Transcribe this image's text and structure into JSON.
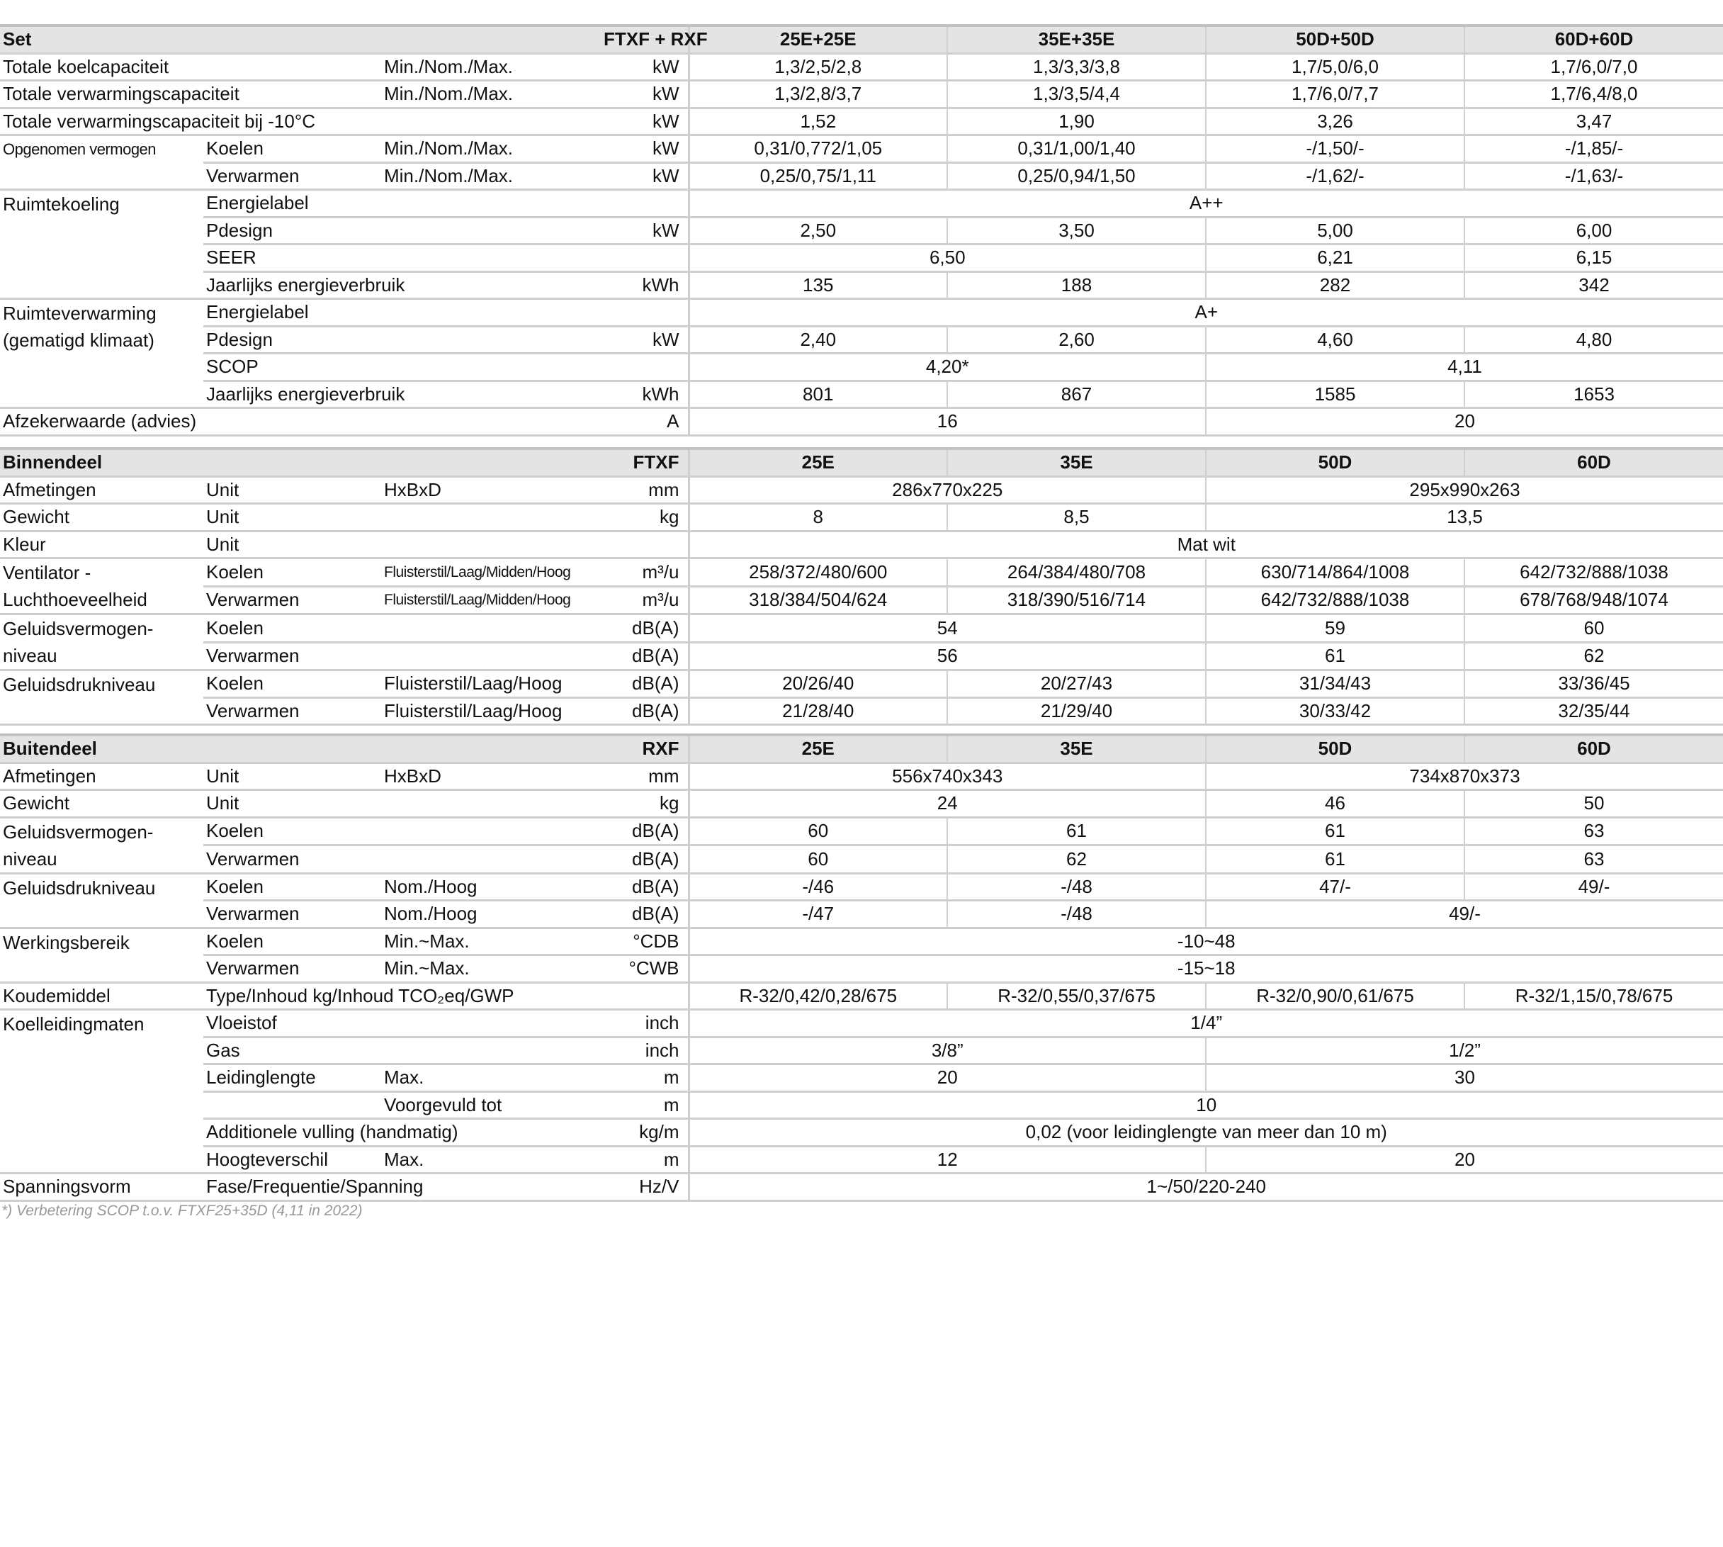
{
  "sections": [
    {
      "header": {
        "title": "Set",
        "model": "FTXF + RXF",
        "cols": [
          "25E+25E",
          "35E+35E",
          "50D+50D",
          "60D+60D"
        ]
      },
      "rows": [
        {
          "g": "Totale koelcapaciteit",
          "gs": 1,
          "sub": "",
          "spec": "Min./Nom./Max.",
          "unit": "kW",
          "cells": [
            [
              "1,3/2,5/2,8",
              1
            ],
            [
              "1,3/3,3/3,8",
              1
            ],
            [
              "1,7/5,0/6,0",
              1
            ],
            [
              "1,7/6,0/7,0",
              1
            ]
          ]
        },
        {
          "g": "Totale verwarmingscapaciteit",
          "gs": 1,
          "sub": "",
          "spec": "Min./Nom./Max.",
          "unit": "kW",
          "cells": [
            [
              "1,3/2,8/3,7",
              1
            ],
            [
              "1,3/3,5/4,4",
              1
            ],
            [
              "1,7/6,0/7,7",
              1
            ],
            [
              "1,7/6,4/8,0",
              1
            ]
          ]
        },
        {
          "g": "Totale verwarmingscapaciteit bij -10°C",
          "gs": 1,
          "sub": "",
          "spec": "",
          "unit": "kW",
          "cells": [
            [
              "1,52",
              1
            ],
            [
              "1,90",
              1
            ],
            [
              "3,26",
              1
            ],
            [
              "3,47",
              1
            ]
          ]
        },
        {
          "g": "Opgenomen vermogen",
          "gs": 2,
          "gsmall": true,
          "sub": "Koelen",
          "spec": "Min./Nom./Max.",
          "unit": "kW",
          "cells": [
            [
              "0,31/0,772/1,05",
              1
            ],
            [
              "0,31/1,00/1,40",
              1
            ],
            [
              "-/1,50/-",
              1
            ],
            [
              "-/1,85/-",
              1
            ]
          ]
        },
        {
          "sub": "Verwarmen",
          "spec": "Min./Nom./Max.",
          "unit": "kW",
          "cells": [
            [
              "0,25/0,75/1,11",
              1
            ],
            [
              "0,25/0,94/1,50",
              1
            ],
            [
              "-/1,62/-",
              1
            ],
            [
              "-/1,63/-",
              1
            ]
          ]
        },
        {
          "g": "Ruimtekoeling",
          "gs": 4,
          "sub": "Energielabel",
          "spec": "",
          "unit": "",
          "cells": [
            [
              "A++",
              4
            ]
          ]
        },
        {
          "sub": "Pdesign",
          "spec": "",
          "unit": "kW",
          "cells": [
            [
              "2,50",
              1
            ],
            [
              "3,50",
              1
            ],
            [
              "5,00",
              1
            ],
            [
              "6,00",
              1
            ]
          ]
        },
        {
          "sub": "SEER",
          "spec": "",
          "unit": "",
          "cells": [
            [
              "6,50",
              2
            ],
            [
              "6,21",
              1
            ],
            [
              "6,15",
              1
            ]
          ]
        },
        {
          "sub": "Jaarlijks energieverbruik",
          "spec": "",
          "unit": "kWh",
          "cells": [
            [
              "135",
              1
            ],
            [
              "188",
              1
            ],
            [
              "282",
              1
            ],
            [
              "342",
              1
            ]
          ]
        },
        {
          "g": "Ruimteverwarming (gematigd klimaat)",
          "gs": 4,
          "sub": "Energielabel",
          "spec": "",
          "unit": "",
          "cells": [
            [
              "A+",
              4
            ]
          ]
        },
        {
          "sub": "Pdesign",
          "spec": "",
          "unit": "kW",
          "cells": [
            [
              "2,40",
              1
            ],
            [
              "2,60",
              1
            ],
            [
              "4,60",
              1
            ],
            [
              "4,80",
              1
            ]
          ]
        },
        {
          "sub": "SCOP",
          "spec": "",
          "unit": "",
          "cells": [
            [
              "4,20*",
              2
            ],
            [
              "4,11",
              2
            ]
          ]
        },
        {
          "sub": "Jaarlijks energieverbruik",
          "spec": "",
          "unit": "kWh",
          "cells": [
            [
              "801",
              1
            ],
            [
              "867",
              1
            ],
            [
              "1585",
              1
            ],
            [
              "1653",
              1
            ]
          ]
        },
        {
          "g": "Afzekerwaarde (advies)",
          "gs": 1,
          "sub": "",
          "spec": "",
          "unit": "A",
          "cells": [
            [
              "16",
              2
            ],
            [
              "20",
              2
            ]
          ]
        }
      ]
    },
    {
      "header": {
        "title": "Binnendeel",
        "model": "FTXF",
        "cols": [
          "25E",
          "35E",
          "50D",
          "60D"
        ]
      },
      "rows": [
        {
          "g": "Afmetingen",
          "gs": 1,
          "sub": "Unit",
          "spec": "HxBxD",
          "unit": "mm",
          "cells": [
            [
              "286x770x225",
              2
            ],
            [
              "295x990x263",
              2
            ]
          ]
        },
        {
          "g": "Gewicht",
          "gs": 1,
          "sub": "Unit",
          "spec": "",
          "unit": "kg",
          "cells": [
            [
              "8",
              1
            ],
            [
              "8,5",
              1
            ],
            [
              "13,5",
              2
            ]
          ]
        },
        {
          "g": "Kleur",
          "gs": 1,
          "sub": "Unit",
          "spec": "",
          "unit": "",
          "cells": [
            [
              "Mat wit",
              4
            ]
          ]
        },
        {
          "g": "Ventilator - Luchthoeveelheid",
          "gs": 2,
          "sub": "Koelen",
          "spec": "Fluisterstil/Laag/Midden/Hoog",
          "specSmall": true,
          "unit": "m³/u",
          "cells": [
            [
              "258/372/480/600",
              1
            ],
            [
              "264/384/480/708",
              1
            ],
            [
              "630/714/864/1008",
              1
            ],
            [
              "642/732/888/1038",
              1
            ]
          ]
        },
        {
          "sub": "Verwarmen",
          "spec": "Fluisterstil/Laag/Midden/Hoog",
          "specSmall": true,
          "unit": "m³/u",
          "cells": [
            [
              "318/384/504/624",
              1
            ],
            [
              "318/390/516/714",
              1
            ],
            [
              "642/732/888/1038",
              1
            ],
            [
              "678/768/948/1074",
              1
            ]
          ]
        },
        {
          "g": "Geluidsvermogen-niveau",
          "gs": 2,
          "sub": "Koelen",
          "spec": "",
          "unit": "dB(A)",
          "cells": [
            [
              "54",
              2
            ],
            [
              "59",
              1
            ],
            [
              "60",
              1
            ]
          ]
        },
        {
          "sub": "Verwarmen",
          "spec": "",
          "unit": "dB(A)",
          "cells": [
            [
              "56",
              2
            ],
            [
              "61",
              1
            ],
            [
              "62",
              1
            ]
          ]
        },
        {
          "g": "Geluidsdrukniveau",
          "gs": 2,
          "sub": "Koelen",
          "spec": "Fluisterstil/Laag/Hoog",
          "unit": "dB(A)",
          "cells": [
            [
              "20/26/40",
              1
            ],
            [
              "20/27/43",
              1
            ],
            [
              "31/34/43",
              1
            ],
            [
              "33/36/45",
              1
            ]
          ]
        },
        {
          "sub": "Verwarmen",
          "spec": "Fluisterstil/Laag/Hoog",
          "unit": "dB(A)",
          "cells": [
            [
              "21/28/40",
              1
            ],
            [
              "21/29/40",
              1
            ],
            [
              "30/33/42",
              1
            ],
            [
              "32/35/44",
              1
            ]
          ]
        }
      ]
    },
    {
      "header": {
        "title": "Buitendeel",
        "model": "RXF",
        "cols": [
          "25E",
          "35E",
          "50D",
          "60D"
        ]
      },
      "rows": [
        {
          "g": "Afmetingen",
          "gs": 1,
          "sub": "Unit",
          "spec": "HxBxD",
          "unit": "mm",
          "cells": [
            [
              "556x740x343",
              2
            ],
            [
              "734x870x373",
              2
            ]
          ]
        },
        {
          "g": "Gewicht",
          "gs": 1,
          "sub": "Unit",
          "spec": "",
          "unit": "kg",
          "cells": [
            [
              "24",
              2
            ],
            [
              "46",
              1
            ],
            [
              "50",
              1
            ]
          ]
        },
        {
          "g": "Geluidsvermogen-niveau",
          "gs": 2,
          "sub": "Koelen",
          "spec": "",
          "unit": "dB(A)",
          "cells": [
            [
              "60",
              1
            ],
            [
              "61",
              1
            ],
            [
              "61",
              1
            ],
            [
              "63",
              1
            ]
          ]
        },
        {
          "sub": "Verwarmen",
          "spec": "",
          "unit": "dB(A)",
          "cells": [
            [
              "60",
              1
            ],
            [
              "62",
              1
            ],
            [
              "61",
              1
            ],
            [
              "63",
              1
            ]
          ]
        },
        {
          "g": "Geluidsdrukniveau",
          "gs": 2,
          "sub": "Koelen",
          "spec": "Nom./Hoog",
          "unit": "dB(A)",
          "cells": [
            [
              "-/46",
              1
            ],
            [
              "-/48",
              1
            ],
            [
              "47/-",
              1
            ],
            [
              "49/-",
              1
            ]
          ]
        },
        {
          "sub": "Verwarmen",
          "spec": "Nom./Hoog",
          "unit": "dB(A)",
          "cells": [
            [
              "-/47",
              1
            ],
            [
              "-/48",
              1
            ],
            [
              "49/-",
              2
            ]
          ]
        },
        {
          "g": "Werkingsbereik",
          "gs": 2,
          "sub": "Koelen",
          "spec": "Min.~Max.",
          "unit": "°CDB",
          "cells": [
            [
              "-10~48",
              4
            ]
          ]
        },
        {
          "sub": "Verwarmen",
          "spec": "Min.~Max.",
          "unit": "°CWB",
          "cells": [
            [
              "-15~18",
              4
            ]
          ]
        },
        {
          "g": "Koudemiddel",
          "gs": 1,
          "sub": "Type/Inhoud kg/Inhoud TCO₂eq/GWP",
          "spec": "",
          "unit": "",
          "cells": [
            [
              "R-32/0,42/0,28/675",
              1
            ],
            [
              "R-32/0,55/0,37/675",
              1
            ],
            [
              "R-32/0,90/0,61/675",
              1
            ],
            [
              "R-32/1,15/0,78/675",
              1
            ]
          ]
        },
        {
          "g": "Koelleidingmaten",
          "gs": 6,
          "sub": "Vloeistof",
          "spec": "",
          "unit": "inch",
          "cells": [
            [
              "1/4”",
              4
            ]
          ]
        },
        {
          "sub": "Gas",
          "spec": "",
          "unit": "inch",
          "cells": [
            [
              "3/8”",
              2
            ],
            [
              "1/2”",
              2
            ]
          ]
        },
        {
          "sub": "Leidinglengte",
          "spec": "Max.",
          "unit": "m",
          "cells": [
            [
              "20",
              2
            ],
            [
              "30",
              2
            ]
          ]
        },
        {
          "sub": "",
          "spec": "Voorgevuld tot",
          "unit": "m",
          "cells": [
            [
              "10",
              4
            ]
          ]
        },
        {
          "sub": "Additionele vulling (handmatig)",
          "spec": "",
          "unit": "kg/m",
          "cells": [
            [
              "0,02 (voor leidinglengte van meer dan 10 m)",
              4
            ]
          ]
        },
        {
          "sub": "Hoogteverschil",
          "spec": "Max.",
          "unit": "m",
          "cells": [
            [
              "12",
              2
            ],
            [
              "20",
              2
            ]
          ]
        },
        {
          "g": "Spanningsvorm",
          "gs": 1,
          "sub": "Fase/Frequentie/Spanning",
          "spec": "",
          "unit": "Hz/V",
          "cells": [
            [
              "1~/50/220-240",
              4
            ]
          ]
        }
      ]
    }
  ],
  "footnote": "*) Verbetering SCOP t.o.v. FTXF25+35D (4,11 in 2022)"
}
